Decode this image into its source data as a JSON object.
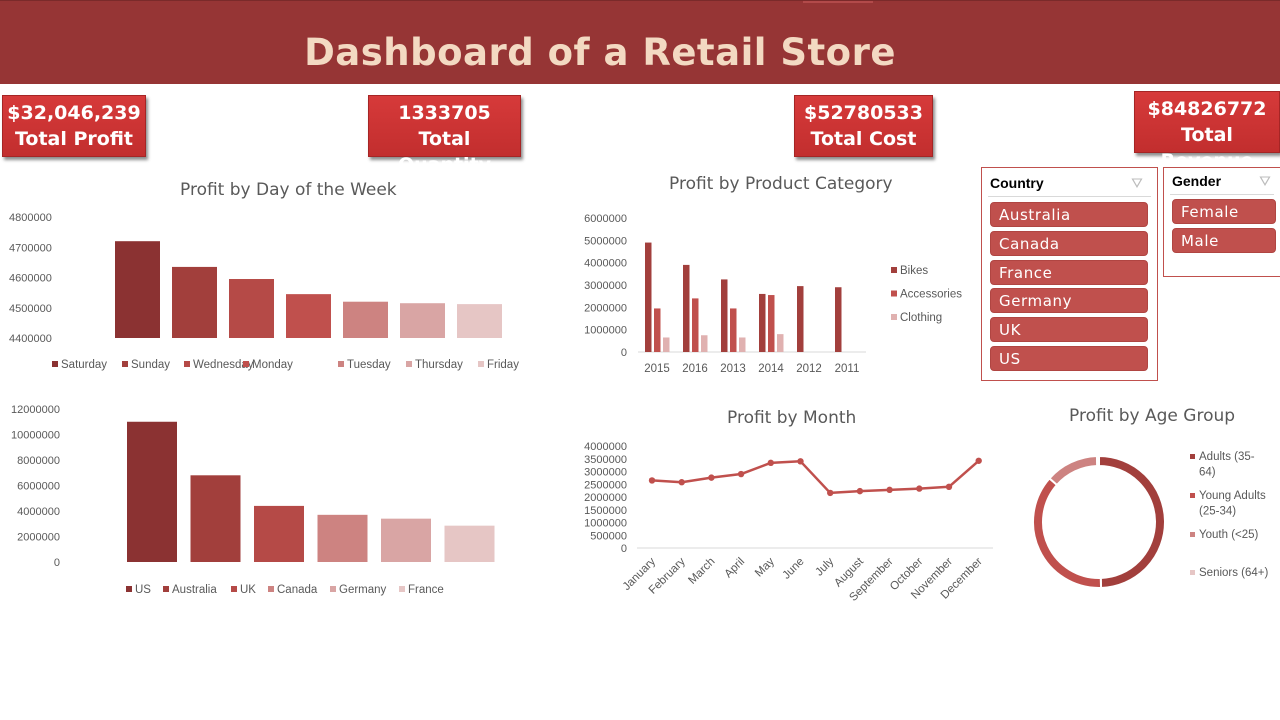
{
  "header": {
    "title": "Dashboard of a Retail Store"
  },
  "kpis": {
    "profit": {
      "value": "$32,046,239",
      "label": "Total Profit"
    },
    "quantity": {
      "value": "1333705",
      "label": "Total Quantity"
    },
    "cost": {
      "value": "$52780533",
      "label": "Total Cost"
    },
    "revenue": {
      "value": "$84826772",
      "label": "Total Revenue"
    }
  },
  "slicers": {
    "country": {
      "title": "Country",
      "items": [
        "Australia",
        "Canada",
        "France",
        "Germany",
        "UK",
        "US"
      ]
    },
    "gender": {
      "title": "Gender",
      "items": [
        "Female",
        "Male"
      ]
    }
  },
  "colors": {
    "header": "#963535",
    "title_text": "#f3d9c2",
    "kpi": "#c9302f",
    "slicer_item": "#c0504d"
  },
  "chart_data": [
    {
      "id": "day",
      "type": "bar",
      "title": "Profit by Day of the Week",
      "categories": [
        "Saturday",
        "Sunday",
        "Wednesday",
        "Monday",
        "Tuesday",
        "Thursday",
        "Friday"
      ],
      "values": [
        4720000,
        4635000,
        4595000,
        4545000,
        4520000,
        4515000,
        4512000
      ],
      "colors": [
        "#8b3232",
        "#a23f3c",
        "#b54a47",
        "#c0504d",
        "#cd8381",
        "#d9a5a4",
        "#e6c6c5"
      ],
      "yticks": [
        "4800000",
        "4700000",
        "4600000",
        "4500000",
        "4400000"
      ],
      "ylim": [
        4400000,
        4800000
      ],
      "legend": "bottom"
    },
    {
      "id": "country",
      "type": "bar",
      "title": "",
      "categories": [
        "US",
        "Australia",
        "UK",
        "Canada",
        "Germany",
        "France"
      ],
      "values": [
        11000000,
        6800000,
        4400000,
        3700000,
        3400000,
        2850000
      ],
      "colors": [
        "#8b3232",
        "#a23f3c",
        "#b54a47",
        "#cd8381",
        "#d9a5a4",
        "#e6c6c5"
      ],
      "yticks": [
        "12000000",
        "10000000",
        "8000000",
        "6000000",
        "4000000",
        "2000000",
        "0"
      ],
      "ylim": [
        0,
        12000000
      ],
      "legend": "bottom"
    },
    {
      "id": "category",
      "type": "bar",
      "title": "Profit by Product Category",
      "categories": [
        "2015",
        "2016",
        "2013",
        "2014",
        "2012",
        "2011"
      ],
      "series": [
        {
          "name": "Bikes",
          "color": "#a23f3c",
          "values": [
            4900000,
            3900000,
            3250000,
            2600000,
            2950000,
            2900000
          ]
        },
        {
          "name": "Accessories",
          "color": "#c0504d",
          "values": [
            1950000,
            2400000,
            1950000,
            2550000,
            0,
            0
          ]
        },
        {
          "name": "Clothing",
          "color": "#e0b1b0",
          "values": [
            650000,
            750000,
            650000,
            800000,
            0,
            0
          ]
        }
      ],
      "yticks": [
        "6000000",
        "5000000",
        "4000000",
        "3000000",
        "2000000",
        "1000000",
        "0"
      ],
      "ylim": [
        0,
        6000000
      ],
      "legend": "right"
    },
    {
      "id": "month",
      "type": "line",
      "title": "Profit by Month",
      "categories": [
        "January",
        "February",
        "March",
        "April",
        "May",
        "June",
        "July",
        "August",
        "September",
        "October",
        "November",
        "December"
      ],
      "values": [
        2650000,
        2580000,
        2760000,
        2900000,
        3340000,
        3400000,
        2160000,
        2230000,
        2280000,
        2330000,
        2400000,
        3420000
      ],
      "color": "#c0504d",
      "yticks": [
        "4000000",
        "3500000",
        "3000000",
        "2500000",
        "2000000",
        "1500000",
        "1000000",
        "500000",
        "0"
      ],
      "ylim": [
        0,
        4000000
      ],
      "legend": "none"
    },
    {
      "id": "age",
      "type": "pie",
      "title": "Profit by Age Group",
      "labels": [
        "Adults (35-64)",
        "Young Adults (25-34)",
        "Youth (<25)",
        "Seniors (64+)"
      ],
      "legend_lines": [
        [
          "Adults (35-",
          "64)"
        ],
        [
          "Young Adults",
          "(25-34)"
        ],
        [
          "Youth (<25)"
        ],
        [
          "Seniors (64+)"
        ]
      ],
      "values": [
        49.5,
        37.0,
        13.0,
        0.5
      ],
      "colors": [
        "#a23f3c",
        "#c0504d",
        "#cd8381",
        "#e6c6c5"
      ],
      "legend": "right"
    }
  ]
}
